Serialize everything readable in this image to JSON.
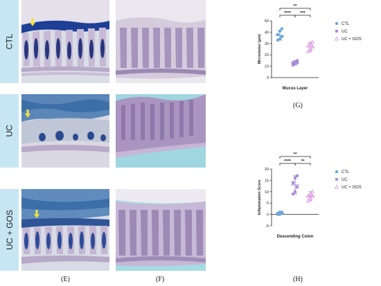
{
  "rows": [
    {
      "label": "CTL"
    },
    {
      "label": "UC"
    },
    {
      "label": "UC + GOS"
    }
  ],
  "panel_letters": {
    "E": "(E)",
    "F": "(F)",
    "G": "(G)",
    "H": "(H)"
  },
  "colors": {
    "row_label_bg": "#c7e6f3",
    "ctl": "#6aa6d8",
    "uc": "#a98fd6",
    "ucgos": "#d99ce0",
    "stain_blue": "#3c6fa8",
    "tissue_purple": "#b6a4c8",
    "arrow": "#f2e23a"
  },
  "chart_data": [
    {
      "type": "scatter",
      "xlabel": "Mucus Layer",
      "ylabel": "Micrometer (μm)",
      "ylim": [
        0,
        50
      ],
      "yticks": [
        0,
        10,
        20,
        30,
        40,
        50
      ],
      "categories": [
        "CTL",
        "UC",
        "UC + GOS"
      ],
      "series": [
        {
          "name": "CTL",
          "marker": "circle",
          "mean": 37,
          "sd_low": 33,
          "sd_high": 41,
          "values": [
            33,
            34,
            36,
            38,
            41,
            43
          ]
        },
        {
          "name": "UC",
          "marker": "square",
          "mean": 13,
          "sd_low": 11,
          "sd_high": 15,
          "values": [
            11,
            12,
            13,
            13,
            14,
            15
          ]
        },
        {
          "name": "UC + GOS",
          "marker": "triangle",
          "mean": 27,
          "sd_low": 23,
          "sd_high": 31,
          "values": [
            23,
            25,
            27,
            28,
            30,
            31
          ]
        }
      ],
      "significance": [
        {
          "from": 0,
          "to": 2,
          "label": "**",
          "level": 1
        },
        {
          "from": 0,
          "to": 1,
          "label": "****",
          "level": 0
        },
        {
          "from": 1,
          "to": 2,
          "label": "***",
          "level": 0
        }
      ],
      "legend": [
        "CTL",
        "UC",
        "UC + GOS"
      ],
      "legend_position": "right"
    },
    {
      "type": "scatter",
      "xlabel": "Descending Colon",
      "ylabel": "Inflammation Score",
      "ylim": [
        -5,
        20
      ],
      "yticks": [
        -5,
        0,
        5,
        10,
        15,
        20
      ],
      "zero_line": true,
      "categories": [
        "CTL",
        "UC",
        "UC + GOS"
      ],
      "series": [
        {
          "name": "CTL",
          "marker": "circle",
          "mean": 0.4,
          "sd_low": 0,
          "sd_high": 1,
          "values": [
            0,
            0,
            0.5,
            0.5,
            1,
            1
          ]
        },
        {
          "name": "UC",
          "marker": "square",
          "mean": 13,
          "sd_low": 9,
          "sd_high": 17,
          "values": [
            9,
            10,
            12,
            14,
            16,
            17
          ]
        },
        {
          "name": "UC + GOS",
          "marker": "triangle",
          "mean": 8,
          "sd_low": 6,
          "sd_high": 10,
          "values": [
            6,
            7,
            8,
            8,
            9,
            10
          ]
        }
      ],
      "significance": [
        {
          "from": 0,
          "to": 2,
          "label": "**",
          "level": 1
        },
        {
          "from": 0,
          "to": 1,
          "label": "****",
          "level": 0
        },
        {
          "from": 1,
          "to": 2,
          "label": "**",
          "level": 0
        }
      ],
      "legend": [
        "CTL",
        "UC",
        "UC + GOS"
      ],
      "legend_position": "right"
    }
  ]
}
